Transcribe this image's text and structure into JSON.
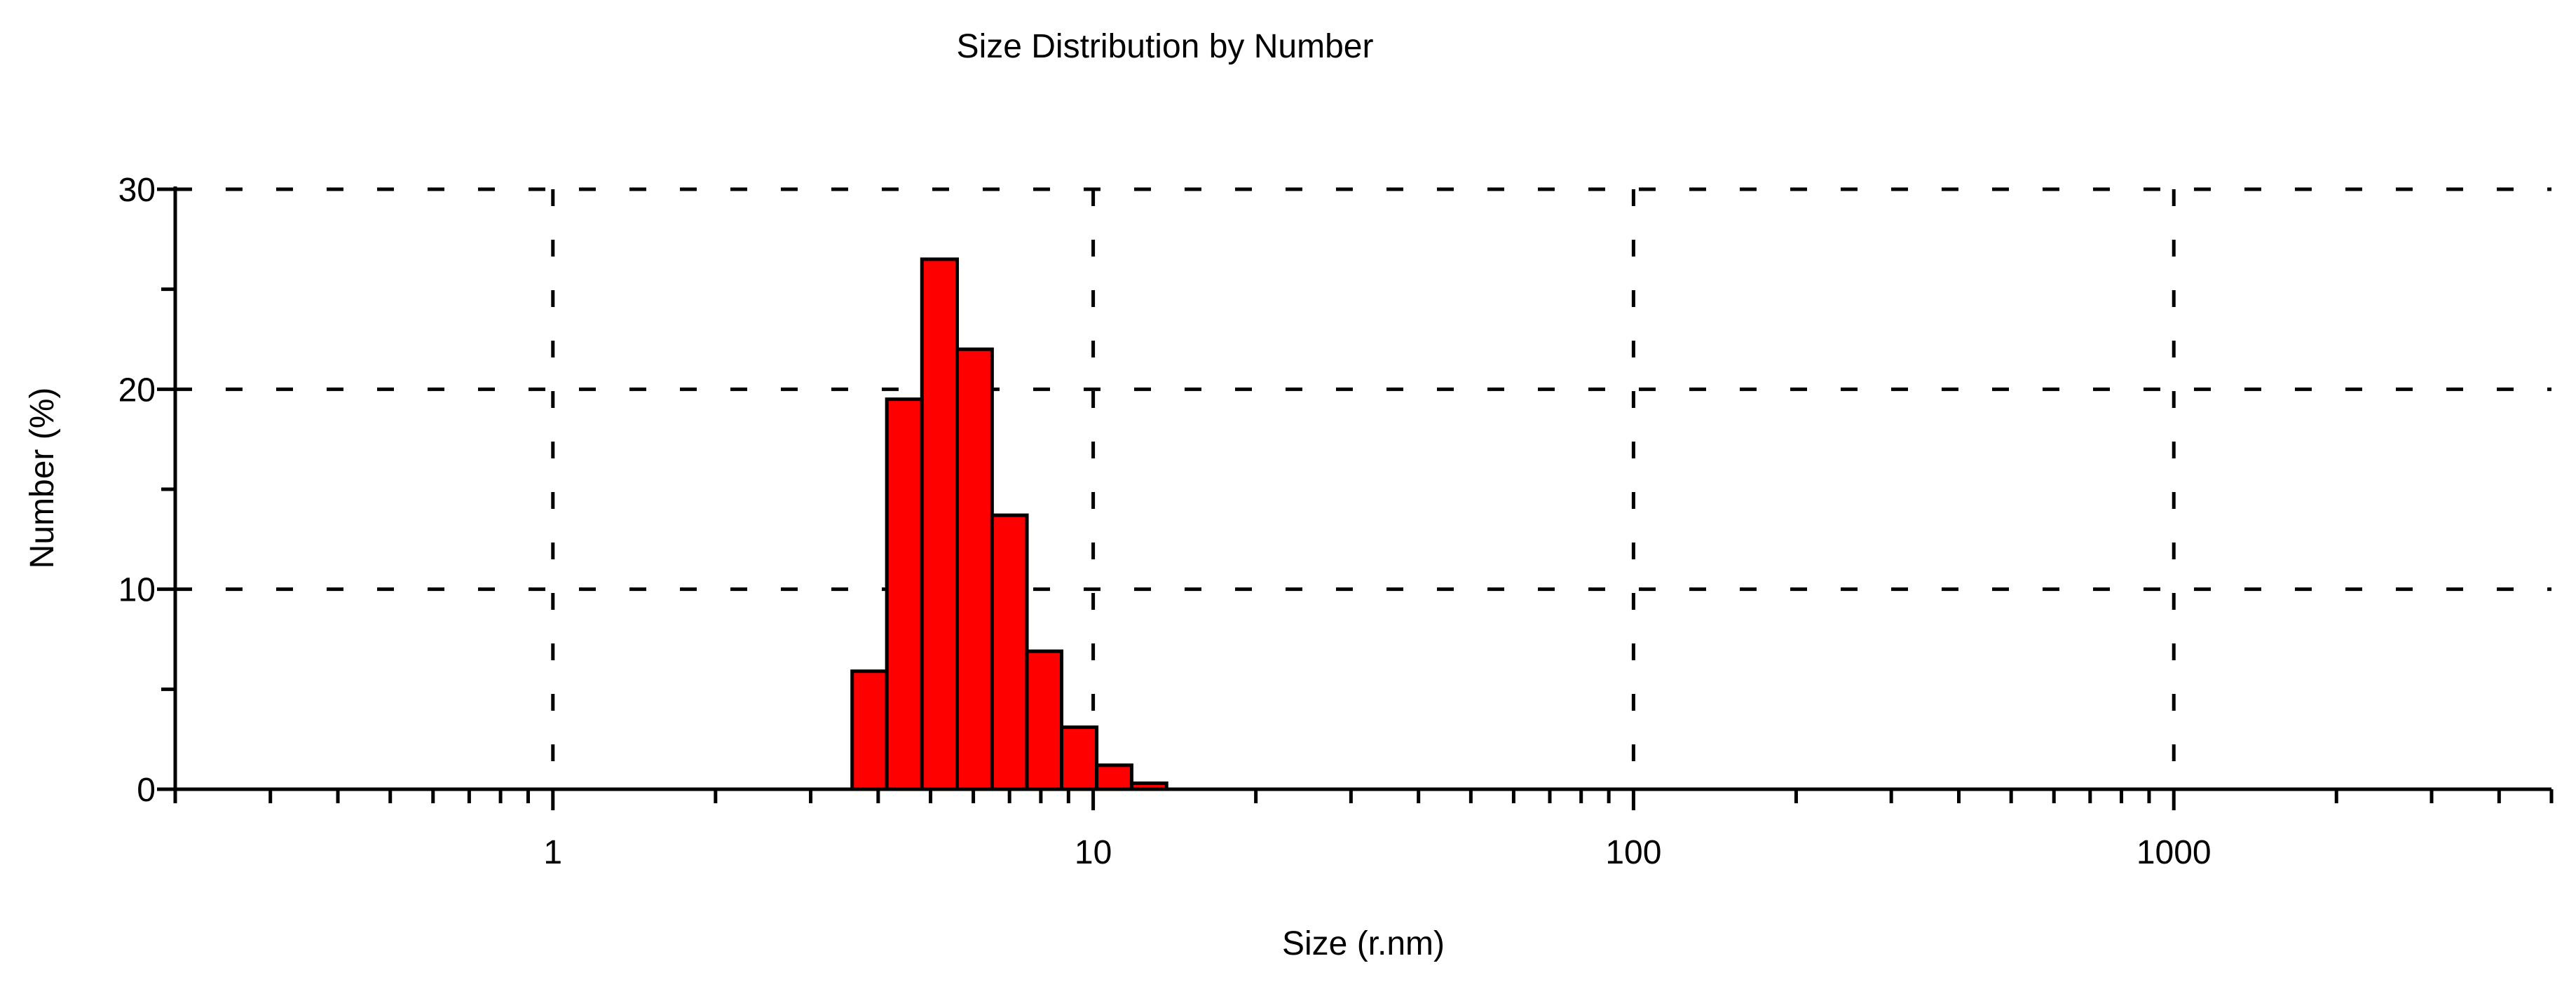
{
  "chart_data": {
    "type": "bar",
    "title": "Size Distribution by Number",
    "xlabel": "Size (r.nm)",
    "ylabel": "Number (%)",
    "x_scale": "log",
    "xlim": [
      0.2,
      5000
    ],
    "ylim": [
      0,
      30
    ],
    "x_ticks": [
      {
        "value": 1,
        "label": "1"
      },
      {
        "value": 10,
        "label": "10"
      },
      {
        "value": 100,
        "label": "100"
      },
      {
        "value": 1000,
        "label": "1000"
      }
    ],
    "y_ticks": [
      {
        "value": 0,
        "label": "0"
      },
      {
        "value": 10,
        "label": "10"
      },
      {
        "value": 20,
        "label": "20"
      },
      {
        "value": 30,
        "label": "30"
      }
    ],
    "grid": true,
    "bins": [
      {
        "x_start": 3.58,
        "x_end": 4.15,
        "value": 5.9
      },
      {
        "x_start": 4.15,
        "x_end": 4.82,
        "value": 19.5
      },
      {
        "x_start": 4.82,
        "x_end": 5.6,
        "value": 26.5
      },
      {
        "x_start": 5.6,
        "x_end": 6.5,
        "value": 22.0
      },
      {
        "x_start": 6.5,
        "x_end": 7.54,
        "value": 13.7
      },
      {
        "x_start": 7.54,
        "x_end": 8.74,
        "value": 6.9
      },
      {
        "x_start": 8.74,
        "x_end": 10.15,
        "value": 3.1
      },
      {
        "x_start": 10.15,
        "x_end": 11.78,
        "value": 1.2
      },
      {
        "x_start": 11.78,
        "x_end": 13.67,
        "value": 0.3
      }
    ],
    "colors": {
      "bar_fill": "#ff0000",
      "bar_stroke": "#000000",
      "axis": "#000000",
      "grid": "#000000"
    }
  }
}
